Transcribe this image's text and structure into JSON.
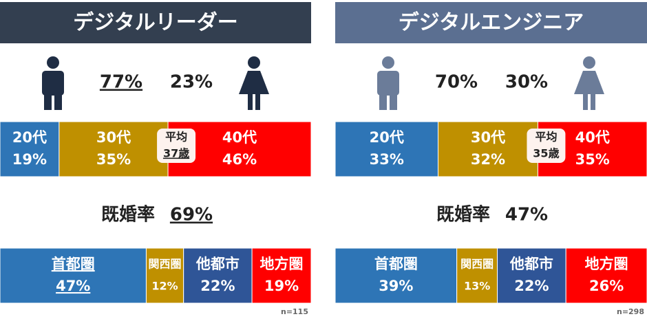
{
  "panels": [
    {
      "title": "デジタルリーダー",
      "underline": true,
      "title_color": "#333f50",
      "icon_color": "#1f2d44",
      "gender": {
        "values": [
          77,
          23
        ],
        "value_labels": [
          "77%",
          "23%"
        ]
      },
      "age": {
        "categories": [
          "20代",
          "30代",
          "40代"
        ],
        "values": [
          19,
          35,
          46
        ],
        "value_labels": [
          "19%",
          "35%",
          "46%"
        ],
        "colors": [
          "#2e75b6",
          "#bf9000",
          "#ff0000"
        ]
      },
      "average": {
        "label": "平均",
        "value": 37,
        "value_label": "37歳"
      },
      "married": {
        "label": "既婚率",
        "value": 69,
        "value_label": "69%"
      },
      "region": {
        "categories": [
          "首都圏",
          "関西圏",
          "他都市",
          "地方圏"
        ],
        "values": [
          47,
          12,
          22,
          19
        ],
        "value_labels": [
          "47%",
          "12%",
          "22%",
          "19%"
        ],
        "colors": [
          "#2e75b6",
          "#bf9000",
          "#2f5597",
          "#ff0000"
        ]
      },
      "sample": "n=115"
    },
    {
      "title": "デジタルエンジニア",
      "underline": false,
      "title_color": "#5b6f91",
      "icon_color": "#6b7c99",
      "gender": {
        "values": [
          70,
          30
        ],
        "value_labels": [
          "70%",
          "30%"
        ]
      },
      "age": {
        "categories": [
          "20代",
          "30代",
          "40代"
        ],
        "values": [
          33,
          32,
          35
        ],
        "value_labels": [
          "33%",
          "32%",
          "35%"
        ],
        "colors": [
          "#2e75b6",
          "#bf9000",
          "#ff0000"
        ]
      },
      "average": {
        "label": "平均",
        "value": 35,
        "value_label": "35歳"
      },
      "married": {
        "label": "既婚率",
        "value": 47,
        "value_label": "47%"
      },
      "region": {
        "categories": [
          "首都圏",
          "関西圏",
          "他都市",
          "地方圏"
        ],
        "values": [
          39,
          13,
          22,
          26
        ],
        "value_labels": [
          "39%",
          "13%",
          "22%",
          "26%"
        ],
        "colors": [
          "#2e75b6",
          "#bf9000",
          "#2f5597",
          "#ff0000"
        ]
      },
      "sample": "n=298"
    }
  ]
}
